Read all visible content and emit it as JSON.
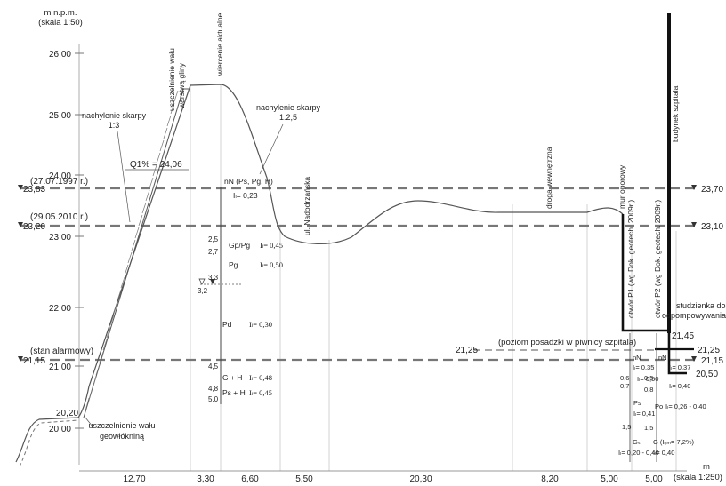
{
  "header": {
    "unit_label": "m n.p.m.",
    "scale_label": "(skala 1:50)"
  },
  "axis": {
    "ticks": [
      "26,00",
      "25,00",
      "24,00",
      "23,00",
      "22,00",
      "21,00",
      "20,00"
    ],
    "bottom_unit": "m",
    "bottom_scale": "(skala 1:250)"
  },
  "distances": [
    "12,70",
    "3,30",
    "6,60",
    "5,50",
    "20,30",
    "8,20",
    "5,00",
    "5,00"
  ],
  "levels": {
    "l2383": "23,83",
    "l2383_date": "(27.07.1997 r.)",
    "l2320": "23,20",
    "l2320_date": "(29.05.2010 r.)",
    "l2370": "23,70",
    "l2310": "23,10",
    "l2115": "21,15",
    "l2115_note": "(stan alarmowy)",
    "l2115_right": "21,15",
    "l2145": "21,45",
    "l2125": "21,25",
    "l2125_left": "21,25",
    "l2050": "20,50",
    "l2020": "20,20",
    "q1": "Q1% = 24,06",
    "floor_note": "(poziom posadzki w piwnicy szpitala)"
  },
  "labels": {
    "slope_left_1": "nachylenie skarpy",
    "slope_left_2": "1:3",
    "slope_right_1": "nachylenie skarpy",
    "slope_right_2": "1:2,5",
    "seal_clay_1": "uszczelnienie wału",
    "seal_clay_2": "warstwą gliny",
    "drilling": "wiercenie aktualne",
    "street": "ul. Nadodrzańska",
    "inner_road": "droga wewnętrzna",
    "retaining_wall": "mur oporowy",
    "hospital": "budynek szpitala",
    "manhole_1": "studzienka do",
    "manhole_2": "odpompowywania wody",
    "bore_p1": "otwór P1 (wg Dok. geotech. 2009r.)",
    "bore_p2": "otwór P2 (wg Dok. geotech. 2009r.)",
    "geotex_1": "uszczelnienie wału",
    "geotex_2": "geowłókniną"
  },
  "log": {
    "nN": "nN (Ps, Pg, H)",
    "nN_il": "Iₗ= 0,23",
    "d25": "2,5",
    "d27": "2,7",
    "d33": "3,3",
    "d32": "3,2",
    "d45": "4,5",
    "d48": "4,8",
    "d50": "5,0",
    "GpPg": "Gp/Pg",
    "GpPg_il": "Iₗ= 0,45",
    "Pg": "Pg",
    "Pg_il": "Iₗ= 0,50",
    "Pd": "Pd",
    "Pd_il": "Iₗ= 0,30",
    "GH": "G + H",
    "GH_il": "Iₗ= 0,48",
    "PsH": "Ps + H",
    "PsH_il": "Iₗ= 0,45"
  },
  "p1": {
    "nN": "nN",
    "il1": "Iₗ= 0,35",
    "d06": "0,6",
    "d07": "0,7",
    "il2": "Iₗ= 0,50",
    "Ps": "Ps",
    "il3": "Iₗ= 0,41",
    "d15": "1,5",
    "Gs": "Gₛ",
    "il4": "Iₗ= 0,20 - 0,40"
  },
  "p2": {
    "nN": "nN",
    "il1": "Iₗ= 0,37",
    "d05": "0,5",
    "d08": "0,8",
    "il2": "Iₗ= 0,40",
    "Po": "Po",
    "il3": "Iₗ= 0,26 - 0,40",
    "d15": "1,5",
    "G": "G (Iₒₘ= 7,2%)",
    "il4": "Iₗ= 0,40"
  }
}
